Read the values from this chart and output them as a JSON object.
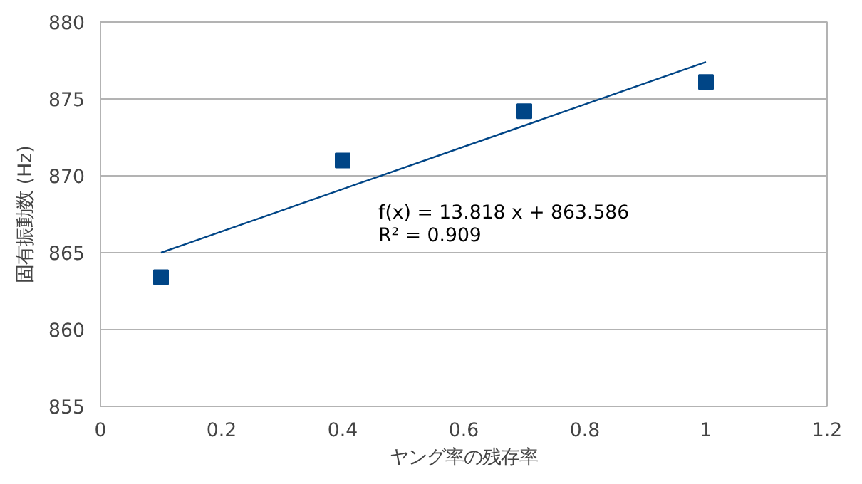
{
  "chart_data": {
    "type": "scatter",
    "xlabel": "ヤング率の残存率",
    "ylabel": "固有振動数 (Hz)",
    "x": [
      0.1,
      0.4,
      0.7,
      1.0
    ],
    "series": [
      {
        "color": "#004586",
        "values": [
          863.4,
          871.0,
          874.2,
          876.1
        ],
        "marker": "square"
      },
      {
        "type": "line",
        "color": "#004586",
        "x": [
          0.1,
          1.0
        ],
        "values": [
          865.0,
          877.4
        ],
        "line_style": "solid"
      }
    ],
    "annotations": [
      "f(x) = 13.818 x + 863.586",
      "R² = 0.909"
    ],
    "xlim": [
      0,
      1.2
    ],
    "xticks": [
      0,
      0.2,
      0.4,
      0.6,
      0.8,
      1,
      1.2
    ],
    "ylim": [
      855,
      880
    ],
    "yticks": [
      855,
      860,
      865,
      870,
      875,
      880
    ],
    "grid": "y"
  }
}
